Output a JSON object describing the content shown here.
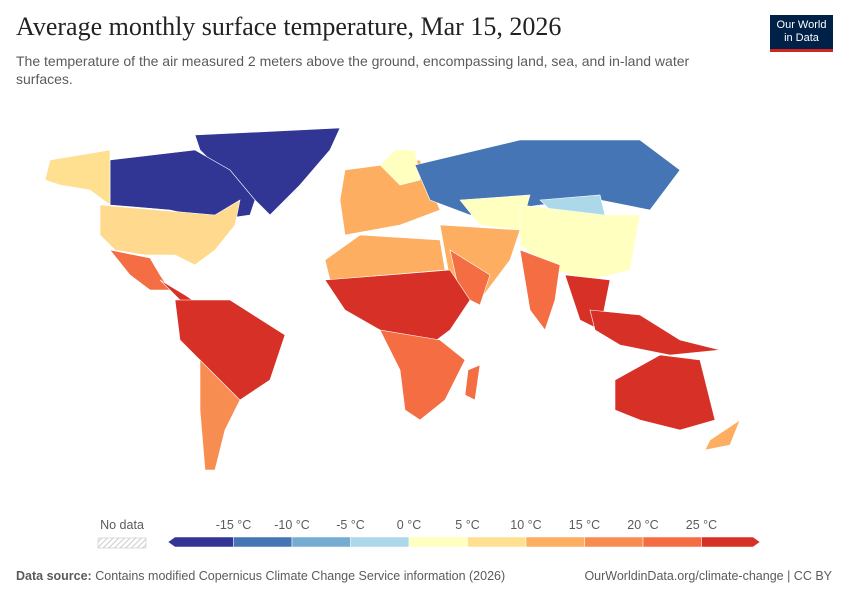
{
  "header": {
    "title": "Average monthly surface temperature, Mar 15, 2026",
    "subtitle_lines": [
      "The temperature of the air measured 2 meters above the ground, encompassing land, sea, and in-land water",
      "surfaces."
    ],
    "logo_lines": [
      "Our World",
      "in Data"
    ]
  },
  "legend": {
    "no_data": "No data",
    "labels": [
      "-15 °C",
      "-10 °C",
      "-5 °C",
      "0 °C",
      "5 °C",
      "10 °C",
      "15 °C",
      "20 °C",
      "25 °C"
    ],
    "colors": [
      "#313695",
      "#4575b4",
      "#74add1",
      "#abd9e9",
      "#ffffbf",
      "#fee090",
      "#fdae61",
      "#f88d52",
      "#f46d43",
      "#d73027"
    ]
  },
  "footer": {
    "source_label": "Data source:",
    "source_text": "Contains modified Copernicus Climate Change Service information (2026)",
    "link": "OurWorldinData.org/climate-change | CC BY"
  }
}
